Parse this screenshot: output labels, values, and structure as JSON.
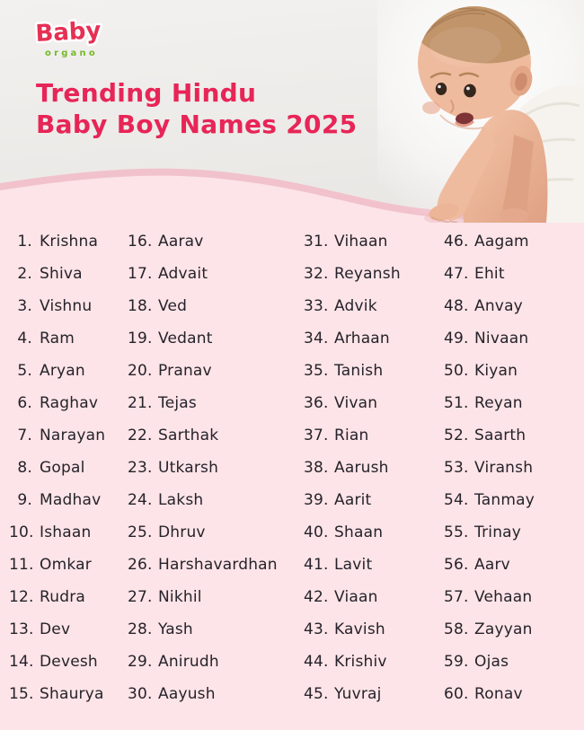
{
  "brand": {
    "name": "Baby",
    "sub": "organo"
  },
  "title": {
    "line1": "Trending Hindu",
    "line2": "Baby Boy Names 2025"
  },
  "colors": {
    "title_accent": "#e72557",
    "logo_red": "#e63054",
    "logo_green": "#76b82a",
    "list_background": "#fce4e8",
    "header_background": "#f0efed",
    "wave_edge": "#f1c2cc",
    "name_text": "#26222a"
  },
  "list": {
    "columns": [
      {
        "start": 1,
        "names": [
          "Krishna",
          "Shiva",
          "Vishnu",
          "Ram",
          "Aryan",
          "Raghav",
          "Narayan",
          "Gopal",
          "Madhav",
          "Ishaan",
          "Omkar",
          "Rudra",
          "Dev",
          "Devesh",
          "Shaurya"
        ]
      },
      {
        "start": 16,
        "names": [
          "Aarav",
          "Advait",
          "Ved",
          "Vedant",
          "Pranav",
          "Tejas",
          "Sarthak",
          "Utkarsh",
          "Laksh",
          "Dhruv",
          "Harshavardhan",
          "Nikhil",
          "Yash",
          "Anirudh",
          "Aayush"
        ]
      },
      {
        "start": 31,
        "names": [
          "Vihaan",
          "Reyansh",
          "Advik",
          "Arhaan",
          "Tanish",
          "Vivan",
          "Rian",
          "Aarush",
          "Aarit",
          "Shaan",
          "Lavit",
          "Viaan",
          "Kavish",
          "Krishiv",
          "Yuvraj"
        ]
      },
      {
        "start": 46,
        "names": [
          "Aagam",
          "Ehit",
          "Anvay",
          "Nivaan",
          "Kiyan",
          "Reyan",
          "Saarth",
          "Viransh",
          "Tanmay",
          "Trinay",
          "Aarv",
          "Vehaan",
          "Zayyan",
          "Ojas",
          "Ronav"
        ]
      }
    ]
  }
}
